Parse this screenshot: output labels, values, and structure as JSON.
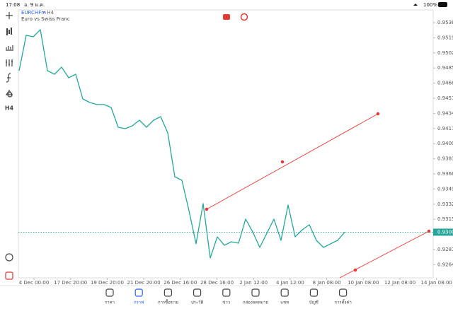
{
  "status_bar": {
    "time": "17:08",
    "date": "อ. 9 ม.ค.",
    "battery": "100%"
  },
  "toolbar": {
    "timeframe": "H4"
  },
  "chart": {
    "symbol": "EURCHFm",
    "period_label": "• H4",
    "description": "Euro vs Swiss Franc",
    "ylim": [
      0.92492,
      0.95503
    ],
    "yticks": [
      {
        "value": 0.9536,
        "label": "0.95360"
      },
      {
        "value": 0.9519,
        "label": "0.95190"
      },
      {
        "value": 0.9502,
        "label": "0.95020"
      },
      {
        "value": 0.9485,
        "label": "0.94850"
      },
      {
        "value": 0.9468,
        "label": "0.94680"
      },
      {
        "value": 0.9451,
        "label": "0.94510"
      },
      {
        "value": 0.9434,
        "label": "0.94340"
      },
      {
        "value": 0.9417,
        "label": "0.94170"
      },
      {
        "value": 0.94,
        "label": "0.94000"
      },
      {
        "value": 0.9383,
        "label": "0.93830"
      },
      {
        "value": 0.9366,
        "label": "0.93660"
      },
      {
        "value": 0.9349,
        "label": "0.93490"
      },
      {
        "value": 0.9332,
        "label": "0.93320"
      },
      {
        "value": 0.9315,
        "label": "0.93150"
      },
      {
        "value": 0.9281,
        "label": "0.92810"
      },
      {
        "value": 0.9264,
        "label": "0.92640"
      }
    ],
    "current_price": {
      "value": 0.93005,
      "label": "0.93005"
    },
    "xlabels": [
      "4 Dec 00:00",
      "17 Dec 20:00",
      "19 Dec 20:00",
      "21 Dec 20:00",
      "26 Dec 16:00",
      "28 Dec 16:00",
      "2 Jan 12:00",
      "4 Jan 12:00",
      "8 Jan 08:00",
      "10 Jan 08:00",
      "12 Jan 08:00",
      "14 Jan 08:00"
    ],
    "line_color": "#26a69a",
    "prices": [
      0.9482,
      0.95217,
      0.95201,
      0.95281,
      0.9482,
      0.9478,
      0.9486,
      0.9474,
      0.9478,
      0.94502,
      0.94462,
      0.94439,
      0.94439,
      0.94407,
      0.94184,
      0.94168,
      0.942,
      0.94264,
      0.94184,
      0.94264,
      0.94303,
      0.94121,
      0.93628,
      0.93588,
      0.93247,
      0.92874,
      0.93326,
      0.92715,
      0.92953,
      0.92858,
      0.92897,
      0.92881,
      0.93152,
      0.93009,
      0.92834,
      0.92993,
      0.93152,
      0.92913,
      0.9331,
      0.92953,
      0.93032,
      0.93088,
      0.92913,
      0.92834,
      0.92874,
      0.92913,
      0.93005
    ]
  },
  "nav": {
    "items": [
      "ราคา",
      "กราฟ",
      "การซื้อขาย",
      "ประวัติ",
      "ข่าว",
      "กล่องจดหมาย",
      "แชท",
      "บัญชี",
      "การตั้งค่า"
    ],
    "active": 1
  }
}
